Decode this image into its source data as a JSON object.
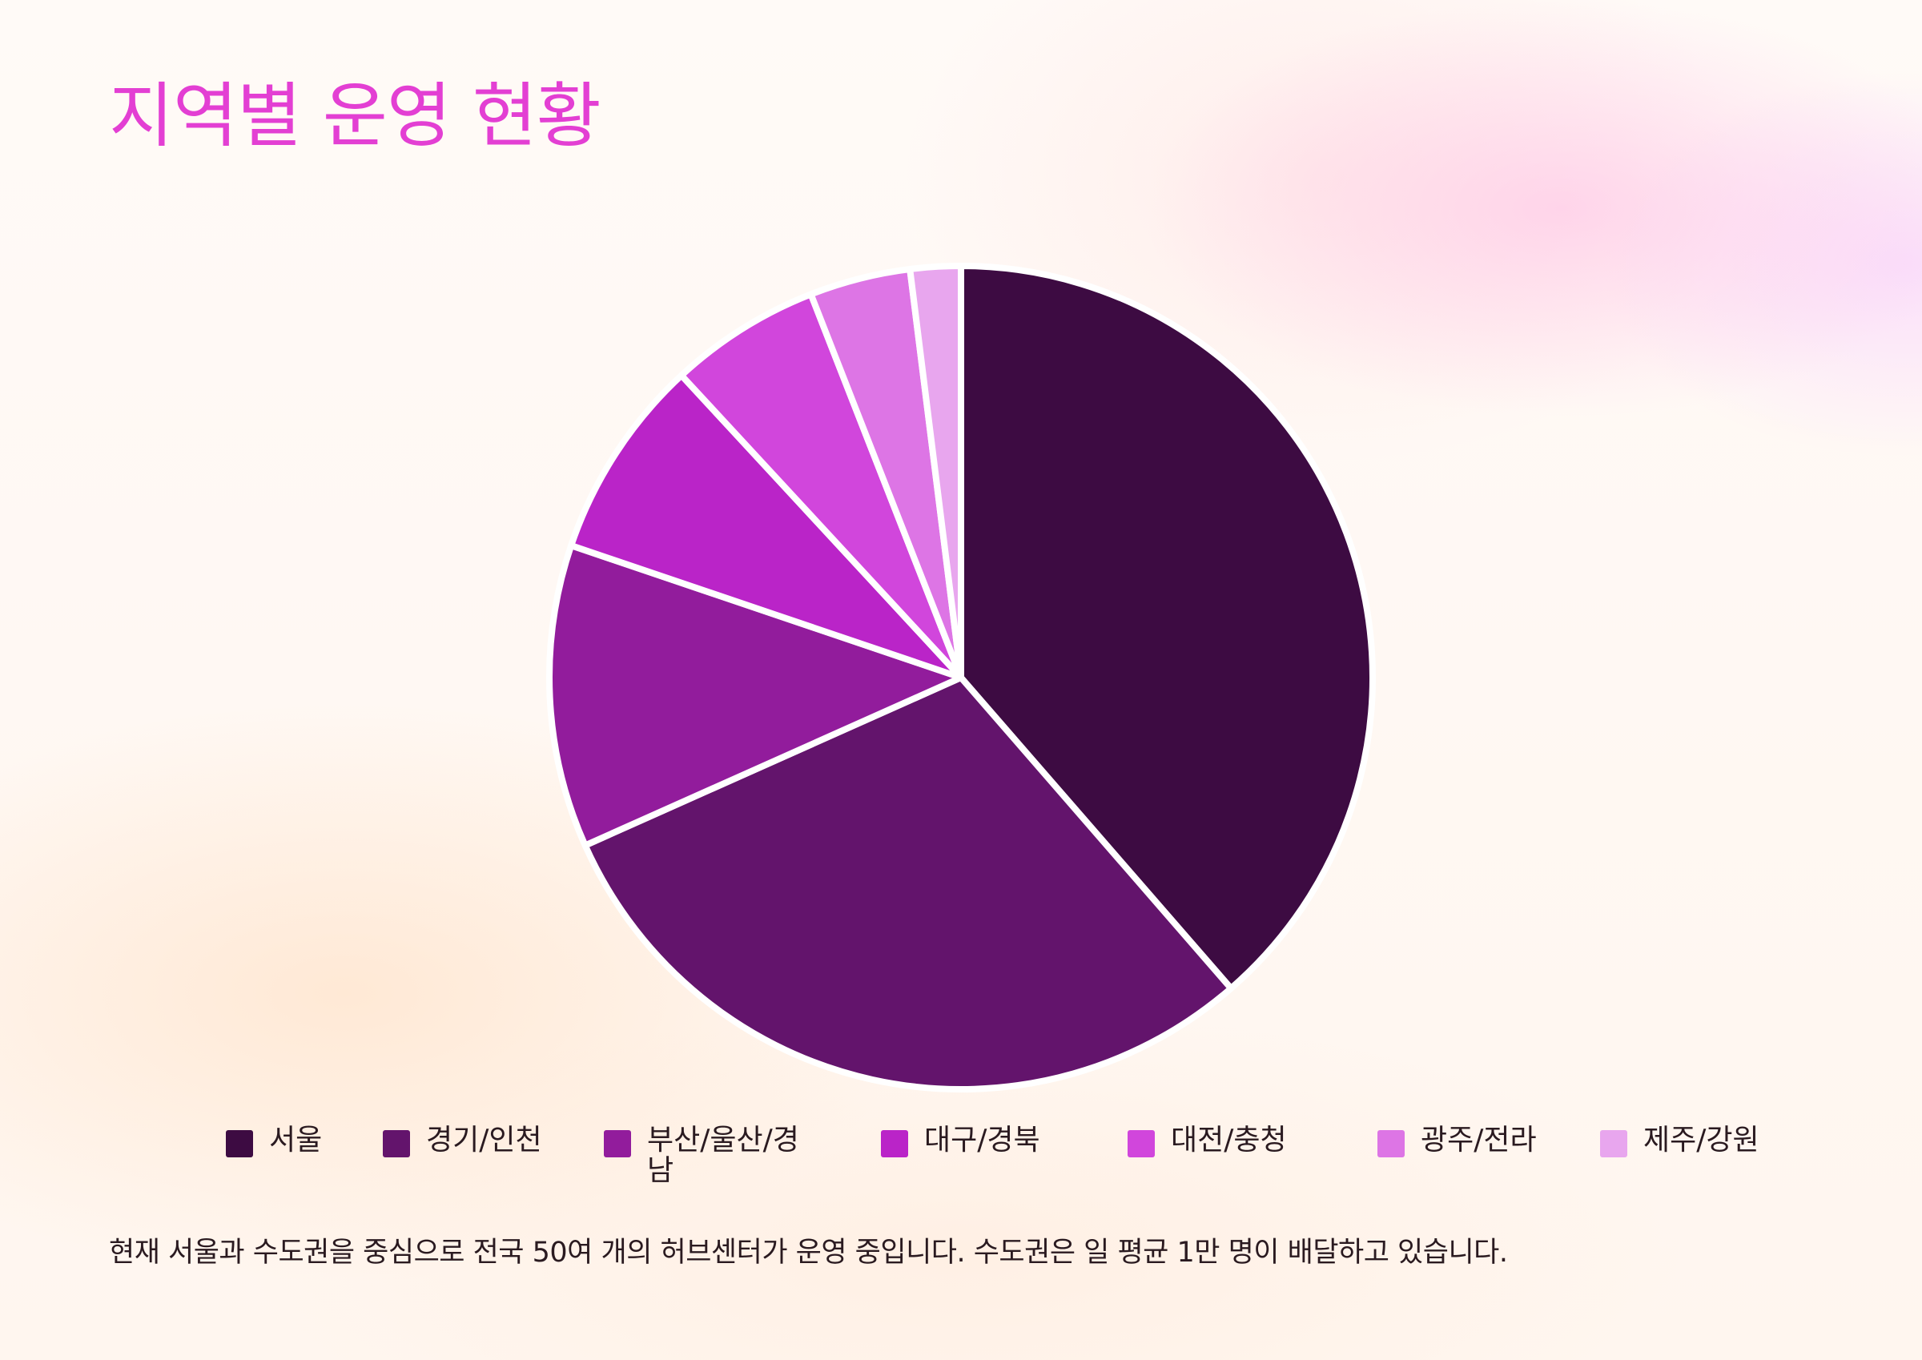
{
  "title": "지역별 운영 현황",
  "caption": "현재 서울과 수도권을 중심으로 전국 50여 개의 허브센터가 운영 중입니다. 수도권은 일 평균 1만 명이 배달하고 있습니다.",
  "chart_data": {
    "type": "pie",
    "categories": [
      "서울",
      "경기/인천",
      "부산/울산/경남",
      "대구/경북",
      "대전/충청",
      "광주/전라",
      "제주/강원"
    ],
    "values": [
      39,
      30,
      12,
      8,
      6,
      4,
      2
    ],
    "colors": [
      "#3d0b42",
      "#63146c",
      "#921c9c",
      "#ba24c8",
      "#d146dc",
      "#dd75e5",
      "#e8a6ee"
    ],
    "legend_position": "bottom",
    "start_angle": "12 o'clock",
    "direction": "clockwise"
  }
}
